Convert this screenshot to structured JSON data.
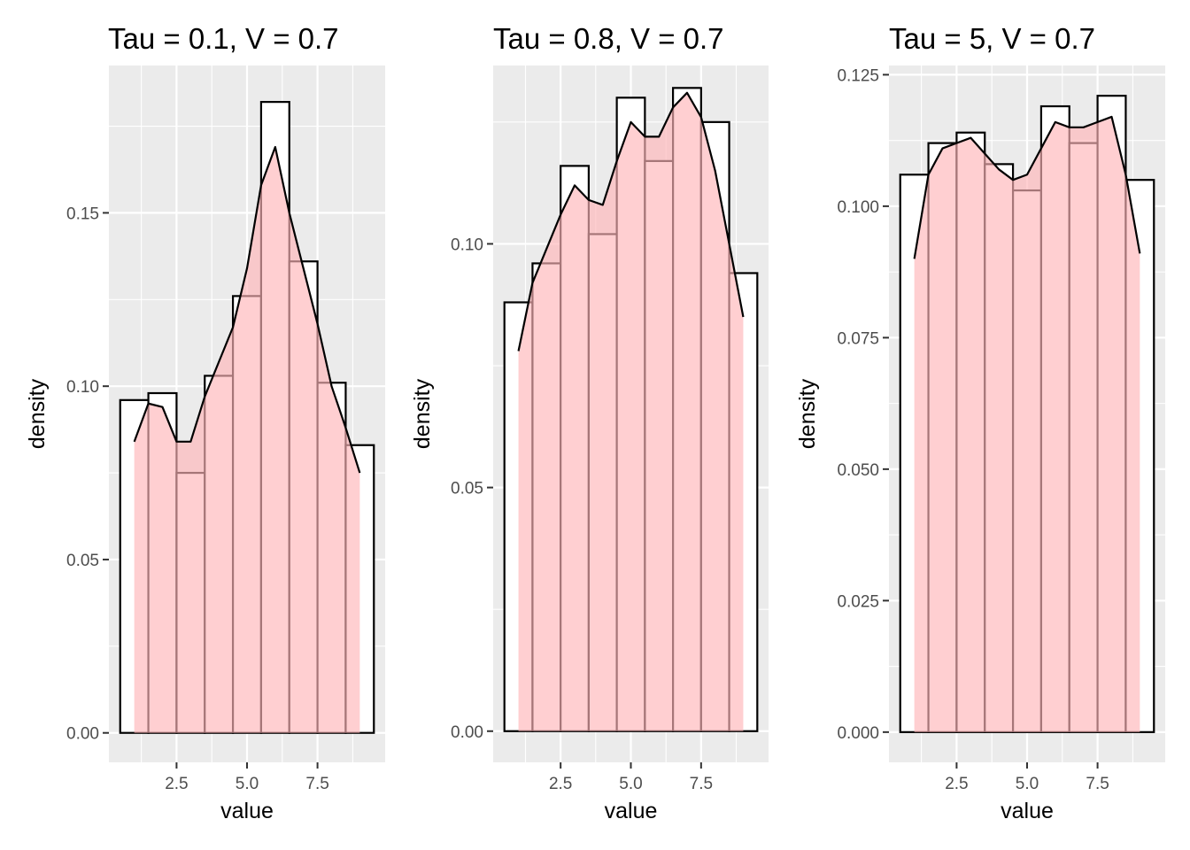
{
  "chart_data": [
    {
      "type": "bar",
      "title": "Tau = 0.1, V = 0.7",
      "xlabel": "value",
      "ylabel": "density",
      "xlim": [
        0.1,
        9.9
      ],
      "ylim": [
        -0.0085,
        0.1925
      ],
      "xticks": [
        2.5,
        5.0,
        7.5
      ],
      "xtick_labels": [
        "2.5",
        "5.0",
        "7.5"
      ],
      "yticks": [
        0,
        0.05,
        0.1,
        0.15
      ],
      "ytick_labels": [
        "0.00",
        "0.05",
        "0.10",
        "0.15"
      ],
      "bin_width": 1,
      "bin_centers": [
        1,
        2,
        3,
        4,
        5,
        6,
        7,
        8,
        9
      ],
      "values": [
        0.096,
        0.098,
        0.075,
        0.103,
        0.126,
        0.182,
        0.136,
        0.101,
        0.083
      ],
      "density_curve": {
        "x": [
          1,
          1.5,
          2,
          2.5,
          3,
          3.5,
          4,
          4.5,
          5,
          5.5,
          6,
          6.5,
          7,
          7.5,
          8,
          8.5,
          9
        ],
        "y": [
          0.084,
          0.095,
          0.094,
          0.084,
          0.084,
          0.097,
          0.107,
          0.117,
          0.134,
          0.158,
          0.169,
          0.15,
          0.134,
          0.118,
          0.1,
          0.088,
          0.075
        ]
      },
      "grid": true,
      "colors": {
        "panel": "#ebebeb",
        "grid": "#ffffff",
        "bar_fill": "#ffffff",
        "bar_outline": "#000000",
        "density_fill": "#ffb6b9",
        "density_line": "#000000"
      }
    },
    {
      "type": "bar",
      "title": "Tau = 0.8, V = 0.7",
      "xlabel": "value",
      "ylabel": "density",
      "xlim": [
        0.1,
        9.9
      ],
      "ylim": [
        -0.0064,
        0.1366
      ],
      "xticks": [
        2.5,
        5.0,
        7.5
      ],
      "xtick_labels": [
        "2.5",
        "5.0",
        "7.5"
      ],
      "yticks": [
        0,
        0.05,
        0.1
      ],
      "ytick_labels": [
        "0.00",
        "0.05",
        "0.10"
      ],
      "bin_width": 1,
      "bin_centers": [
        1,
        2,
        3,
        4,
        5,
        6,
        7,
        8,
        9
      ],
      "values": [
        0.088,
        0.096,
        0.116,
        0.102,
        0.13,
        0.117,
        0.132,
        0.125,
        0.094
      ],
      "density_curve": {
        "x": [
          1,
          1.5,
          2,
          2.5,
          3,
          3.5,
          4,
          4.5,
          5,
          5.5,
          6,
          6.5,
          7,
          7.5,
          8,
          8.5,
          9
        ],
        "y": [
          0.078,
          0.092,
          0.099,
          0.106,
          0.112,
          0.109,
          0.108,
          0.117,
          0.125,
          0.122,
          0.122,
          0.128,
          0.131,
          0.126,
          0.115,
          0.1,
          0.085
        ]
      },
      "grid": true,
      "colors": {
        "panel": "#ebebeb",
        "grid": "#ffffff",
        "bar_fill": "#ffffff",
        "bar_outline": "#000000",
        "density_fill": "#ffb6b9",
        "density_line": "#000000"
      }
    },
    {
      "type": "bar",
      "title": "Tau = 5, V = 0.7",
      "xlabel": "value",
      "ylabel": "density",
      "xlim": [
        0.1,
        9.9
      ],
      "ylim": [
        -0.00575,
        0.12675
      ],
      "xticks": [
        2.5,
        5.0,
        7.5
      ],
      "xtick_labels": [
        "2.5",
        "5.0",
        "7.5"
      ],
      "yticks": [
        0,
        0.025,
        0.05,
        0.075,
        0.1,
        0.125
      ],
      "ytick_labels": [
        "0.000",
        "0.025",
        "0.050",
        "0.075",
        "0.100",
        "0.125"
      ],
      "bin_width": 1,
      "bin_centers": [
        1,
        2,
        3,
        4,
        5,
        6,
        7,
        8,
        9
      ],
      "values": [
        0.106,
        0.112,
        0.114,
        0.108,
        0.103,
        0.119,
        0.112,
        0.121,
        0.105
      ],
      "density_curve": {
        "x": [
          1,
          1.5,
          2,
          2.5,
          3,
          3.5,
          4,
          4.5,
          5,
          5.5,
          6,
          6.5,
          7,
          7.5,
          8,
          8.5,
          9
        ],
        "y": [
          0.09,
          0.106,
          0.111,
          0.112,
          0.113,
          0.11,
          0.107,
          0.105,
          0.106,
          0.111,
          0.116,
          0.115,
          0.115,
          0.116,
          0.117,
          0.106,
          0.091
        ]
      },
      "grid": true,
      "colors": {
        "panel": "#ebebeb",
        "grid": "#ffffff",
        "bar_fill": "#ffffff",
        "bar_outline": "#000000",
        "density_fill": "#ffb6b9",
        "density_line": "#000000"
      }
    }
  ]
}
